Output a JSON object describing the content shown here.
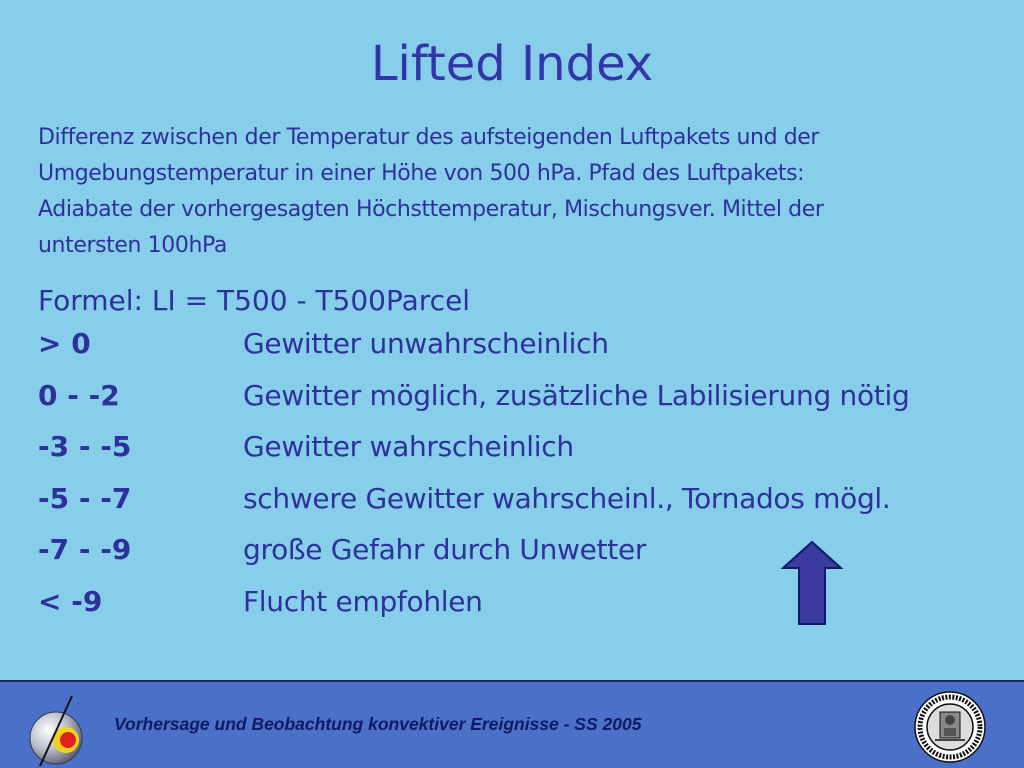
{
  "slide": {
    "title": "Lifted Index",
    "description_lines": [
      "Differenz zwischen der Temperatur des aufsteigenden Luftpakets und der",
      "Umgebungstemperatur in einer Höhe von 500 hPa. Pfad des Luftpakets:",
      "Adiabate der vorhergesagten Höchsttemperatur, Mischungsver. Mittel der",
      "untersten 100hPa"
    ],
    "formula": "Formel: LI = T500 - T500Parcel",
    "scale": [
      {
        "range": "> 0",
        "meaning": "Gewitter unwahrscheinlich"
      },
      {
        "range": "0 - -2",
        "meaning": "Gewitter möglich, zusätzliche Labilisierung nötig"
      },
      {
        "range": "-3 - -5",
        "meaning": "Gewitter wahrscheinlich"
      },
      {
        "range": "-5 - -7",
        "meaning": "schwere Gewitter wahrscheinl., Tornados mögl."
      },
      {
        "range": "-7 - -9",
        "meaning": "große Gefahr durch Unwetter"
      },
      {
        "range": "< -9",
        "meaning": "Flucht empfohlen"
      }
    ],
    "arrow_icon": "up-arrow-icon"
  },
  "footer": {
    "text": "Vorhersage und Beobachtung konvektiver Ereignisse - SS 2005",
    "logo_icon": "institute-logo-icon",
    "seal_icon": "university-seal-icon"
  },
  "colors": {
    "background": "#87CEEB",
    "text": "#2E3199",
    "footer_background": "#4A70C8",
    "arrow_fill": "#3A3AA0"
  }
}
